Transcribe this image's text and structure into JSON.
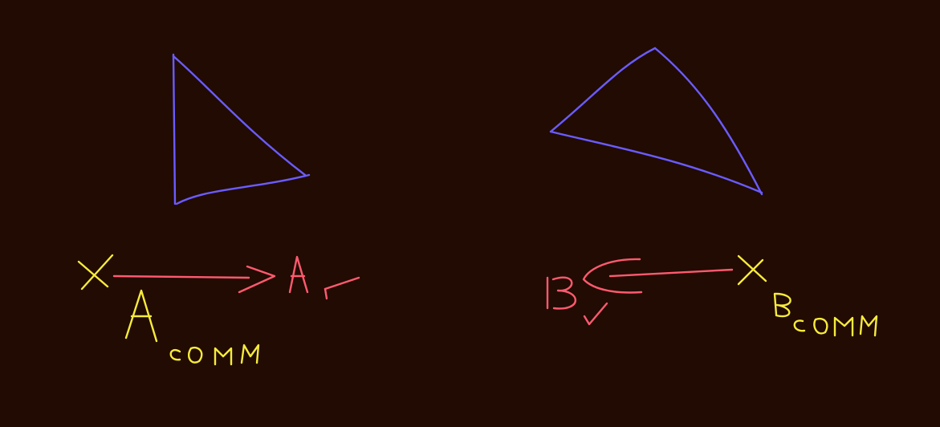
{
  "canvas": {
    "background": "#210b02",
    "colors": {
      "shape": "#6a5cff",
      "label": "#f6eb3c",
      "vector": "#ff5a6f"
    }
  },
  "left_diagram": {
    "shape": "triangle",
    "start_label": "X",
    "start_subscript": "A",
    "start_subscript_2": "COM",
    "arrow_direction": "right",
    "end_label": "A",
    "end_subscript": "v",
    "check_icon": "checkmark-icon"
  },
  "right_diagram": {
    "shape": "triangle",
    "start_label": "X",
    "start_subscript": "B",
    "start_subscript_2": "COM",
    "arrow_direction": "left",
    "end_label": "B",
    "end_subscript": "v",
    "check_icon": "checkmark-icon"
  }
}
